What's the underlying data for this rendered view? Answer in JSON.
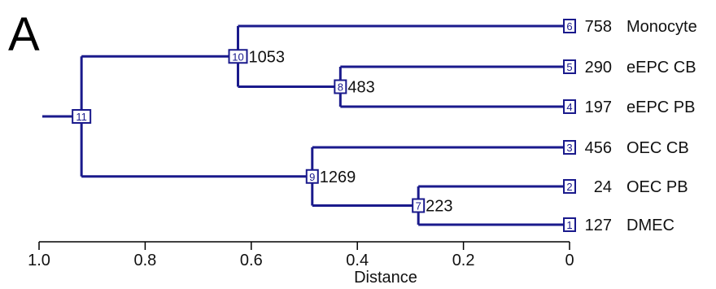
{
  "panel_label": "A",
  "colors": {
    "edge": "#1a1a8c",
    "box": "#1a1a8c",
    "text": "#111111"
  },
  "axis": {
    "title": "Distance",
    "range": [
      1.0,
      0.0
    ],
    "ticks": [
      1.0,
      0.8,
      0.6,
      0.4,
      0.2,
      0.0
    ],
    "tick_labels": [
      "1.0",
      "0.8",
      "0.6",
      "0.4",
      "0.2",
      "0"
    ]
  },
  "leaves": [
    {
      "id": "6",
      "count": "758",
      "label": "Monocyte"
    },
    {
      "id": "5",
      "count": "290",
      "label": "eEPC CB"
    },
    {
      "id": "4",
      "count": "197",
      "label": "eEPC PB"
    },
    {
      "id": "3",
      "count": "456",
      "label": "OEC CB"
    },
    {
      "id": "2",
      "count": "24",
      "label": "OEC PB"
    },
    {
      "id": "1",
      "count": "127",
      "label": "DMEC"
    }
  ],
  "internal_nodes": [
    {
      "id": "11",
      "count": "",
      "distance": 0.92
    },
    {
      "id": "10",
      "count": "1053",
      "distance": 0.625
    },
    {
      "id": "9",
      "count": "1269",
      "distance": 0.485
    },
    {
      "id": "8",
      "count": "483",
      "distance": 0.432
    },
    {
      "id": "7",
      "count": "223",
      "distance": 0.285
    }
  ],
  "tree": [
    {
      "parent": "11",
      "children": [
        "10",
        "9"
      ]
    },
    {
      "parent": "10",
      "children": [
        "6",
        "8"
      ]
    },
    {
      "parent": "8",
      "children": [
        "5",
        "4"
      ]
    },
    {
      "parent": "9",
      "children": [
        "3",
        "7"
      ]
    },
    {
      "parent": "7",
      "children": [
        "2",
        "1"
      ]
    }
  ]
}
